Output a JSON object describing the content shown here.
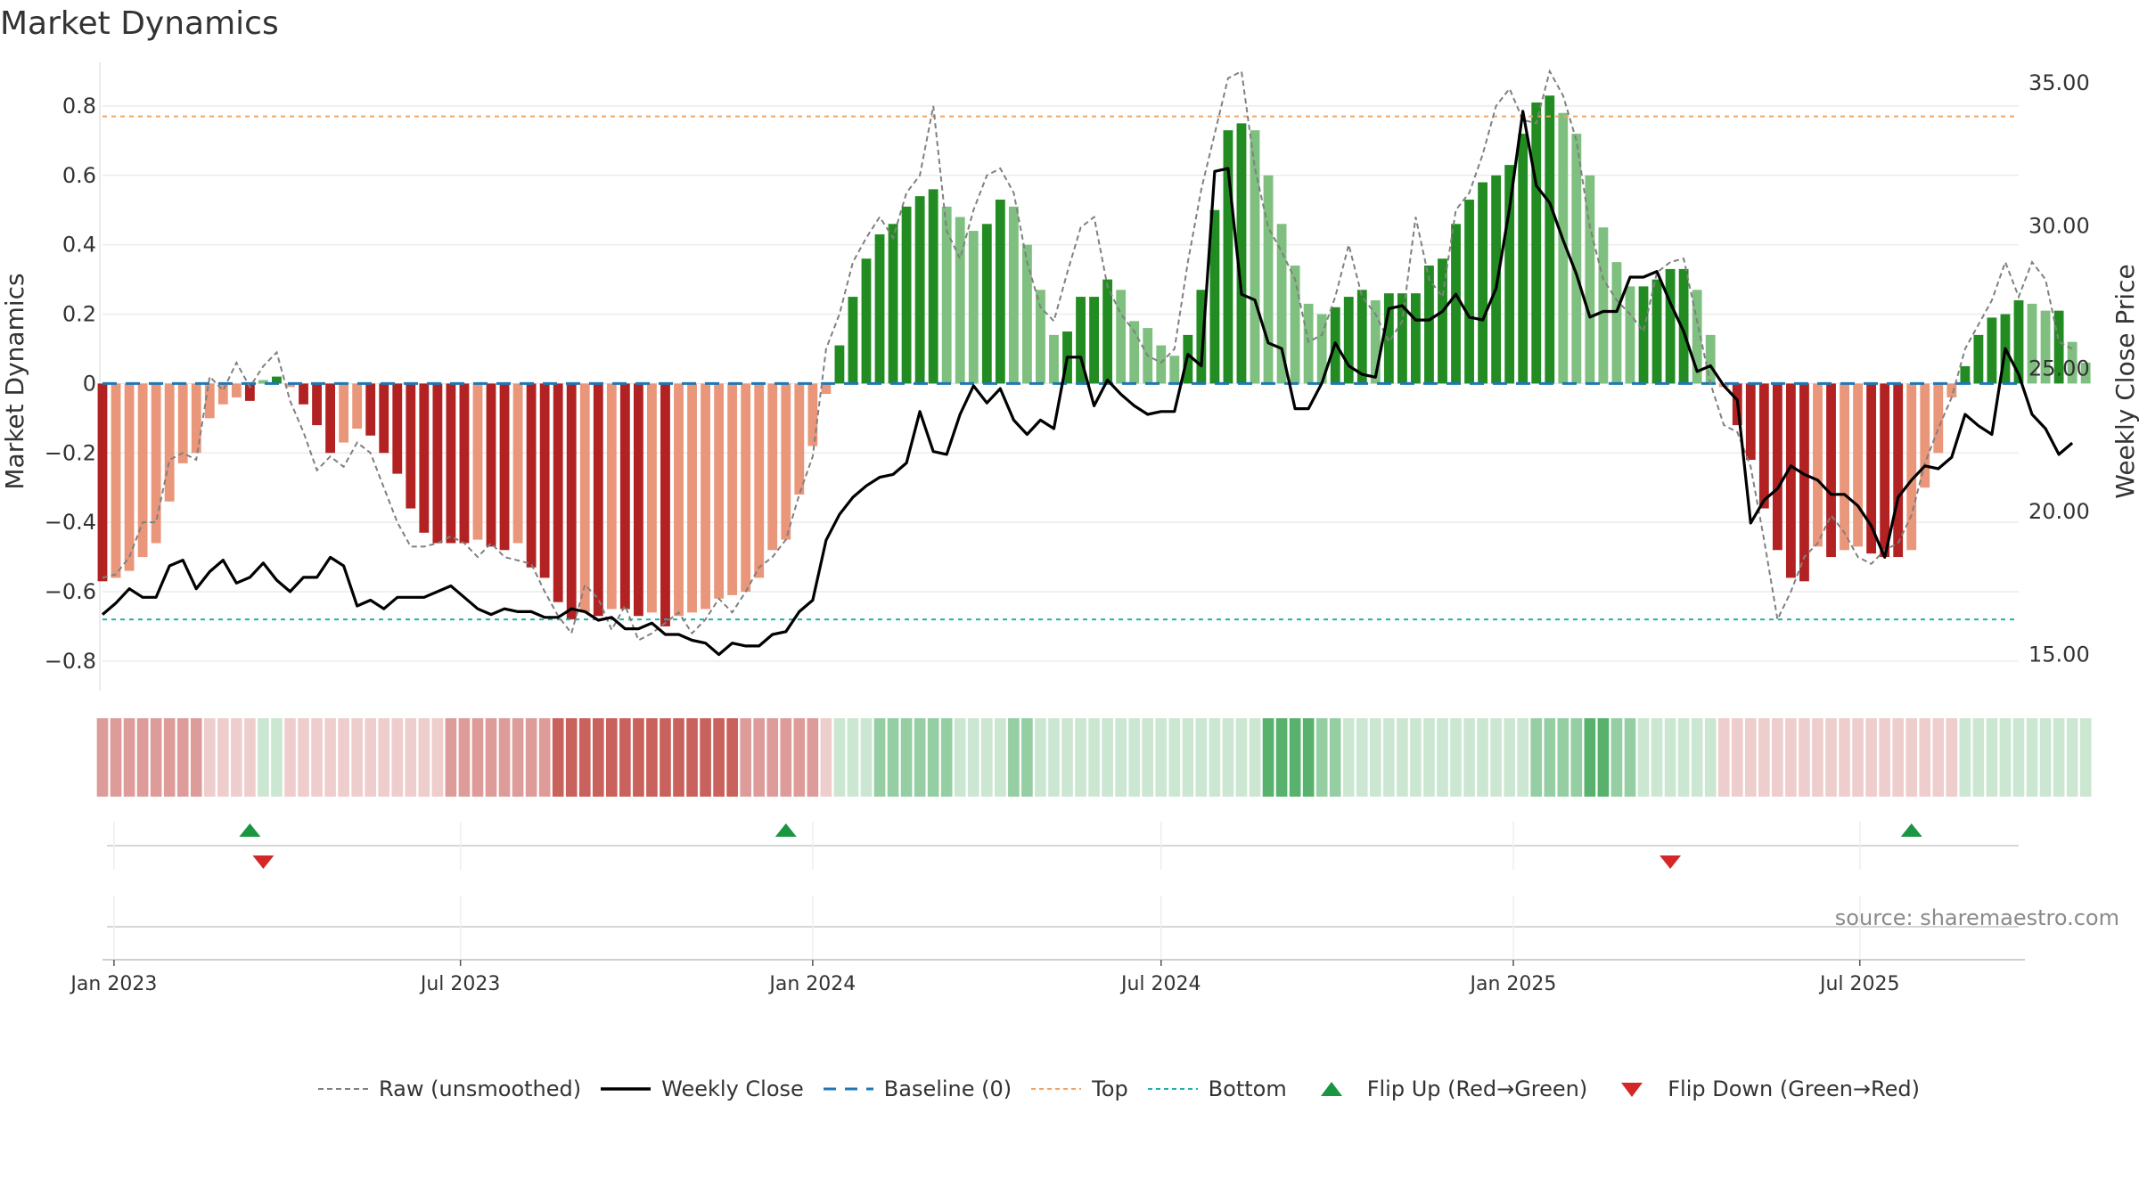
{
  "title": "Market Dynamics",
  "source": "source: sharemaestro.com",
  "colors": {
    "strong_green": "#228b22",
    "light_green": "#7fbf7f",
    "strong_red": "#b22222",
    "light_red": "#e9967a",
    "close": "#000000",
    "raw": "#808080",
    "baseline": "#1f77b4",
    "top": "#f4a460",
    "bottom": "#20b2aa",
    "flip_up": "#1a9641",
    "flip_down": "#d62728"
  },
  "chart_data": {
    "type": "bar",
    "title": "Market Dynamics",
    "ylabel": "Market Dynamics",
    "y2label": "Weekly Close Price",
    "ylim": [
      -0.88,
      0.9
    ],
    "y2lim": [
      13.8,
      35.4
    ],
    "yticks": [
      "0.8",
      "0.6",
      "0.4",
      "0.2",
      "0",
      "−0.2",
      "−0.4",
      "−0.6",
      "−0.8"
    ],
    "yticks_values": [
      0.8,
      0.6,
      0.4,
      0.2,
      0,
      -0.2,
      -0.4,
      -0.6,
      -0.8
    ],
    "y2ticks": [
      "35.00",
      "30.00",
      "25.00",
      "20.00",
      "15.00"
    ],
    "y2ticks_values": [
      35,
      30,
      25,
      20,
      15
    ],
    "xticks": [
      "Jan 2023",
      "Jul 2023",
      "Jan 2024",
      "Jul 2024",
      "Jan 2025",
      "Jul 2025"
    ],
    "xticks_dates": [
      "2023-01-01",
      "2023-07-01",
      "2024-01-01",
      "2024-07-01",
      "2025-01-01",
      "2025-07-01"
    ],
    "start_week": "2022-12-26",
    "weeks": 144,
    "smoothed": [
      -0.57,
      -0.56,
      -0.54,
      -0.5,
      -0.46,
      -0.34,
      -0.23,
      -0.2,
      -0.1,
      -0.06,
      -0.04,
      -0.05,
      0.01,
      0.02,
      -0.01,
      -0.06,
      -0.12,
      -0.2,
      -0.17,
      -0.13,
      -0.15,
      -0.2,
      -0.26,
      -0.36,
      -0.43,
      -0.46,
      -0.46,
      -0.46,
      -0.45,
      -0.47,
      -0.48,
      -0.46,
      -0.53,
      -0.56,
      -0.63,
      -0.68,
      -0.66,
      -0.67,
      -0.65,
      -0.65,
      -0.67,
      -0.66,
      -0.7,
      -0.67,
      -0.66,
      -0.65,
      -0.62,
      -0.61,
      -0.6,
      -0.56,
      -0.48,
      -0.45,
      -0.32,
      -0.18,
      -0.03,
      0.11,
      0.25,
      0.36,
      0.43,
      0.46,
      0.51,
      0.54,
      0.56,
      0.51,
      0.48,
      0.44,
      0.46,
      0.53,
      0.51,
      0.4,
      0.27,
      0.14,
      0.15,
      0.25,
      0.25,
      0.3,
      0.27,
      0.18,
      0.16,
      0.11,
      0.08,
      0.14,
      0.27,
      0.5,
      0.73,
      0.75,
      0.73,
      0.6,
      0.46,
      0.34,
      0.23,
      0.2,
      0.22,
      0.25,
      0.27,
      0.24,
      0.26,
      0.26,
      0.26,
      0.34,
      0.36,
      0.46,
      0.53,
      0.58,
      0.6,
      0.63,
      0.72,
      0.81,
      0.83,
      0.78,
      0.72,
      0.6,
      0.45,
      0.35,
      0.28,
      0.28,
      0.3,
      0.33,
      0.33,
      0.27,
      0.14,
      -0.01,
      -0.12,
      -0.22,
      -0.36,
      -0.48,
      -0.56,
      -0.57,
      -0.47,
      -0.5,
      -0.48,
      -0.47,
      -0.49,
      -0.5,
      -0.5,
      -0.48,
      -0.3,
      -0.2,
      -0.04,
      0.05,
      0.14,
      0.19,
      0.2,
      0.24,
      0.23,
      0.21,
      0.21,
      0.12,
      0.06
    ],
    "raw": [
      -0.56,
      -0.55,
      -0.5,
      -0.4,
      -0.4,
      -0.22,
      -0.2,
      -0.22,
      0.02,
      -0.02,
      0.06,
      -0.01,
      0.05,
      0.09,
      -0.05,
      -0.14,
      -0.25,
      -0.21,
      -0.24,
      -0.17,
      -0.2,
      -0.3,
      -0.4,
      -0.47,
      -0.47,
      -0.46,
      -0.44,
      -0.46,
      -0.5,
      -0.46,
      -0.5,
      -0.51,
      -0.52,
      -0.6,
      -0.67,
      -0.72,
      -0.58,
      -0.62,
      -0.71,
      -0.64,
      -0.74,
      -0.72,
      -0.69,
      -0.66,
      -0.72,
      -0.68,
      -0.62,
      -0.66,
      -0.6,
      -0.53,
      -0.5,
      -0.45,
      -0.32,
      -0.21,
      0.1,
      0.2,
      0.35,
      0.42,
      0.48,
      0.42,
      0.55,
      0.6,
      0.8,
      0.44,
      0.36,
      0.5,
      0.6,
      0.62,
      0.55,
      0.35,
      0.22,
      0.18,
      0.32,
      0.45,
      0.48,
      0.28,
      0.2,
      0.15,
      0.08,
      0.06,
      0.1,
      0.35,
      0.56,
      0.72,
      0.88,
      0.9,
      0.62,
      0.45,
      0.38,
      0.3,
      0.12,
      0.14,
      0.25,
      0.4,
      0.25,
      0.2,
      0.12,
      0.18,
      0.48,
      0.3,
      0.25,
      0.5,
      0.55,
      0.66,
      0.8,
      0.85,
      0.76,
      0.75,
      0.9,
      0.83,
      0.7,
      0.45,
      0.3,
      0.24,
      0.2,
      0.15,
      0.32,
      0.35,
      0.36,
      0.18,
      0.0,
      -0.12,
      -0.14,
      -0.24,
      -0.45,
      -0.68,
      -0.6,
      -0.5,
      -0.46,
      -0.38,
      -0.43,
      -0.5,
      -0.52,
      -0.48,
      -0.46,
      -0.38,
      -0.23,
      -0.13,
      -0.04,
      0.1,
      0.17,
      0.24,
      0.35,
      0.25,
      0.35,
      0.3,
      0.12,
      0.1
    ],
    "close": [
      16.4,
      16.8,
      17.3,
      17.0,
      17.0,
      18.1,
      18.3,
      17.3,
      17.9,
      18.3,
      17.5,
      17.7,
      18.2,
      17.6,
      17.2,
      17.7,
      17.7,
      18.4,
      18.1,
      16.7,
      16.9,
      16.6,
      17.0,
      17.0,
      17.0,
      17.2,
      17.4,
      17.0,
      16.6,
      16.4,
      16.6,
      16.5,
      16.5,
      16.3,
      16.3,
      16.6,
      16.5,
      16.2,
      16.3,
      15.9,
      15.9,
      16.1,
      15.7,
      15.7,
      15.5,
      15.4,
      15.0,
      15.4,
      15.3,
      15.3,
      15.7,
      15.8,
      16.5,
      16.9,
      19.0,
      19.9,
      20.5,
      20.9,
      21.2,
      21.3,
      21.7,
      23.5,
      22.1,
      22.0,
      23.4,
      24.4,
      23.8,
      24.3,
      23.2,
      22.7,
      23.2,
      22.9,
      25.4,
      25.4,
      23.7,
      24.6,
      24.1,
      23.7,
      23.4,
      23.5,
      23.5,
      25.5,
      25.1,
      31.9,
      32.0,
      27.6,
      27.4,
      25.9,
      25.7,
      23.6,
      23.6,
      24.5,
      25.9,
      25.1,
      24.8,
      24.7,
      27.1,
      27.2,
      26.7,
      26.7,
      27.0,
      27.6,
      26.8,
      26.7,
      27.8,
      30.6,
      34.0,
      31.4,
      30.8,
      29.5,
      28.3,
      26.8,
      27.0,
      27.0,
      28.2,
      28.2,
      28.4,
      27.3,
      26.3,
      24.9,
      25.1,
      24.4,
      23.9,
      19.6,
      20.4,
      20.8,
      21.6,
      21.3,
      21.1,
      20.6,
      20.6,
      20.2,
      19.5,
      18.4,
      20.5,
      21.1,
      21.6,
      21.5,
      21.9,
      23.4,
      23.0,
      22.7,
      25.7,
      24.8,
      23.4,
      22.9,
      22.0,
      22.4
    ],
    "shade": [
      2,
      2,
      2,
      2,
      2,
      2,
      2,
      2,
      1,
      1,
      1,
      1,
      1,
      1,
      1,
      1,
      1,
      1,
      1,
      1,
      1,
      1,
      1,
      1,
      1,
      1,
      2,
      2,
      2,
      2,
      2,
      2,
      2,
      2,
      3,
      3,
      3,
      3,
      3,
      3,
      3,
      3,
      3,
      3,
      3,
      3,
      3,
      3,
      2,
      2,
      2,
      2,
      2,
      2,
      1,
      1,
      1,
      1,
      2,
      2,
      2,
      2,
      2,
      2,
      1,
      1,
      1,
      1,
      2,
      2,
      1,
      1,
      1,
      1,
      1,
      1,
      1,
      1,
      1,
      1,
      1,
      1,
      1,
      1,
      1,
      1,
      1,
      3,
      3,
      3,
      3,
      2,
      2,
      1,
      1,
      1,
      1,
      1,
      1,
      1,
      1,
      1,
      1,
      1,
      1,
      1,
      1,
      2,
      2,
      2,
      2,
      3,
      3,
      2,
      2,
      1,
      1,
      1,
      1,
      1,
      1,
      1,
      1,
      1,
      1,
      1,
      1,
      1,
      1,
      1,
      1,
      1,
      1,
      1,
      1,
      1,
      1,
      1,
      1,
      1,
      1,
      1,
      1,
      1
    ],
    "top_line": 0.77,
    "bottom_line": -0.68,
    "flip_up_weeks": [
      11,
      51,
      135
    ],
    "flip_down_weeks": [
      12,
      117
    ],
    "legend": [
      {
        "label": "Raw (unsmoothed)",
        "symbol": "dashed-gray"
      },
      {
        "label": "Weekly Close",
        "symbol": "solid-black"
      },
      {
        "label": "Baseline (0)",
        "symbol": "dashed-blue"
      },
      {
        "label": "Top",
        "symbol": "dotted-orange"
      },
      {
        "label": "Bottom",
        "symbol": "dotted-teal"
      },
      {
        "label": "Flip Up (Red→Green)",
        "symbol": "triangle-up-green"
      },
      {
        "label": "Flip Down (Green→Red)",
        "symbol": "triangle-down-red"
      }
    ]
  }
}
